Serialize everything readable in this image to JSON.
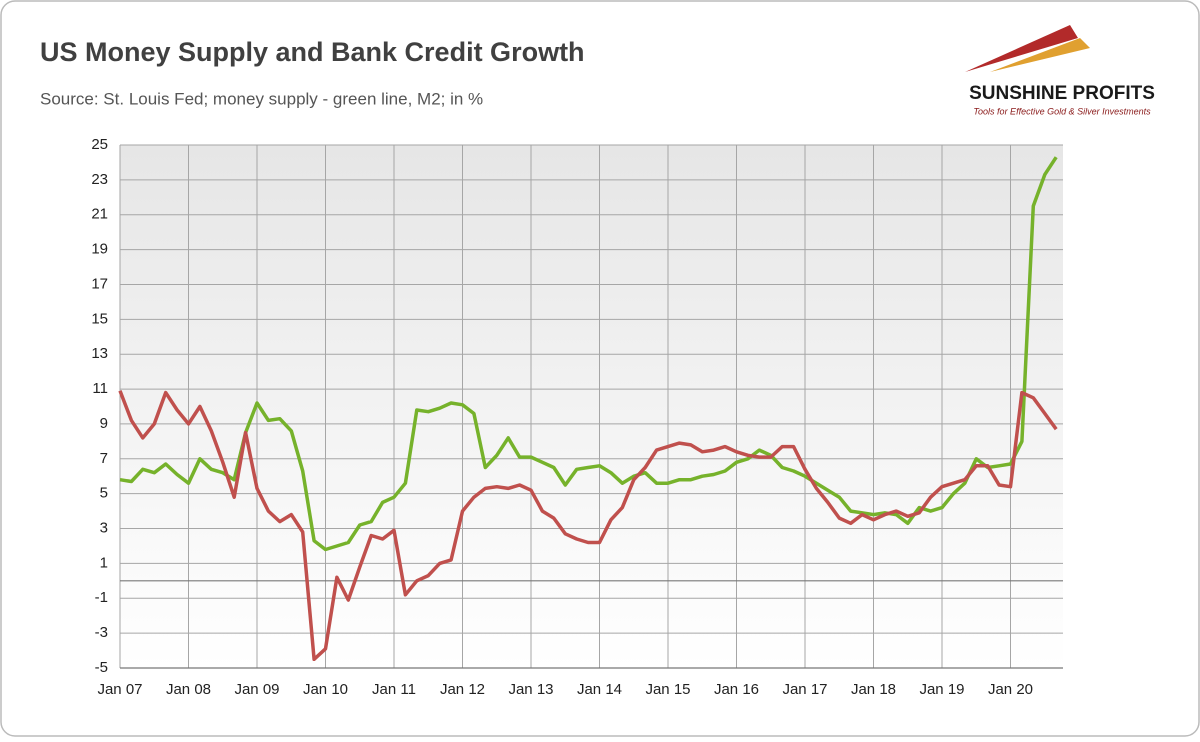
{
  "chart_data": {
    "type": "line",
    "title": "US Money Supply and Bank Credit Growth",
    "subtitle": "Source: St. Louis Fed; money supply - green line, M2; in %",
    "logo": {
      "name": "SUNSHINE PROFITS",
      "tagline": "Tools for Effective Gold & Silver Investments"
    },
    "categories": [
      "Jan 07",
      null,
      null,
      null,
      null,
      null,
      "Jan 08",
      null,
      null,
      null,
      null,
      null,
      "Jan 09",
      null,
      null,
      null,
      null,
      null,
      "Jan 10",
      null,
      null,
      null,
      null,
      null,
      "Jan 11",
      null,
      null,
      null,
      null,
      null,
      "Jan 12",
      null,
      null,
      null,
      null,
      null,
      "Jan 13",
      null,
      null,
      null,
      null,
      null,
      "Jan 14",
      null,
      null,
      null,
      null,
      null,
      "Jan 15",
      null,
      null,
      null,
      null,
      null,
      "Jan 16",
      null,
      null,
      null,
      null,
      null,
      "Jan 17",
      null,
      null,
      null,
      null,
      null,
      "Jan 18",
      null,
      null,
      null,
      null,
      null,
      "Jan 19",
      null,
      null,
      null,
      null,
      null,
      "Jan 20",
      null,
      null,
      null,
      null
    ],
    "series": [
      {
        "name": "M2",
        "color": "#76b22b",
        "values": [
          5.8,
          5.7,
          6.4,
          6.2,
          6.7,
          6.1,
          5.6,
          7.0,
          6.4,
          6.2,
          5.8,
          8.5,
          10.2,
          9.2,
          9.3,
          8.6,
          6.3,
          2.3,
          1.8,
          2.0,
          2.2,
          3.2,
          3.4,
          4.5,
          4.8,
          5.6,
          9.8,
          9.7,
          9.9,
          10.2,
          10.1,
          9.6,
          6.5,
          7.2,
          8.2,
          7.1,
          7.1,
          6.8,
          6.5,
          5.5,
          6.4,
          6.5,
          6.6,
          6.2,
          5.6,
          6.0,
          6.2,
          5.6,
          5.6,
          5.8,
          5.8,
          6.0,
          6.1,
          6.3,
          6.8,
          7.0,
          7.5,
          7.2,
          6.5,
          6.3,
          6.0,
          5.6,
          5.2,
          4.8,
          4.0,
          3.9,
          3.8,
          3.9,
          3.8,
          3.3,
          4.2,
          4.0,
          4.2,
          5.0,
          5.6,
          7.0,
          6.5,
          6.6,
          6.7,
          8.0,
          21.5,
          23.3,
          24.3
        ]
      },
      {
        "name": "Bank credit",
        "color": "#c0504d",
        "values": [
          10.9,
          9.2,
          8.2,
          9.0,
          10.8,
          9.8,
          9.0,
          10.0,
          8.6,
          6.8,
          4.8,
          8.5,
          5.3,
          4.0,
          3.4,
          3.8,
          2.8,
          -4.5,
          -3.9,
          0.2,
          -1.1,
          0.8,
          2.6,
          2.4,
          2.9,
          -0.8,
          0.0,
          0.3,
          1.0,
          1.2,
          4.0,
          4.8,
          5.3,
          5.4,
          5.3,
          5.5,
          5.2,
          4.0,
          3.6,
          2.7,
          2.4,
          2.2,
          2.2,
          3.5,
          4.2,
          5.8,
          6.5,
          7.5,
          7.7,
          7.9,
          7.8,
          7.4,
          7.5,
          7.7,
          7.4,
          7.2,
          7.1,
          7.1,
          7.7,
          7.7,
          6.4,
          5.3,
          4.5,
          3.6,
          3.3,
          3.8,
          3.5,
          3.8,
          4.0,
          3.7,
          3.9,
          4.8,
          5.4,
          5.6,
          5.8,
          6.6,
          6.6,
          5.5,
          5.4,
          10.8,
          10.5,
          9.6,
          8.7
        ]
      }
    ],
    "ylim": [
      -5,
      25
    ],
    "yticks": [
      -5,
      -3,
      -1,
      1,
      3,
      5,
      7,
      9,
      11,
      13,
      15,
      17,
      19,
      21,
      23,
      25
    ],
    "grid": true
  }
}
